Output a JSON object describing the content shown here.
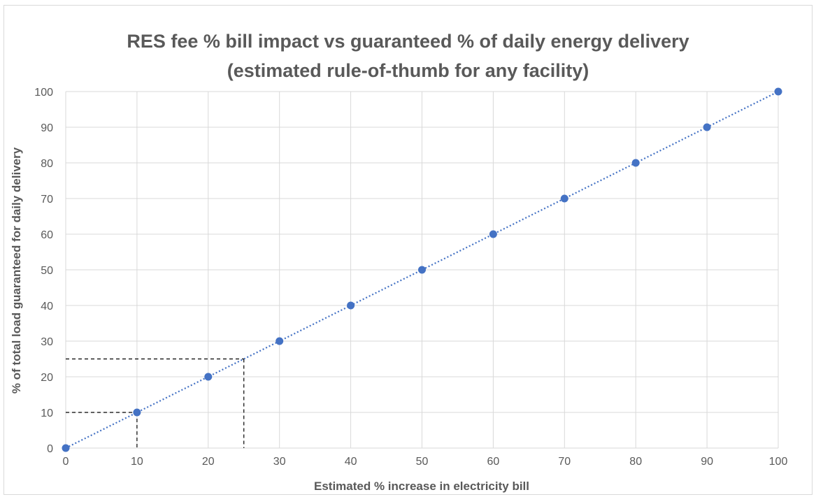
{
  "chart_data": {
    "type": "scatter",
    "title_line1": "RES fee % bill impact vs guaranteed % of daily energy delivery",
    "title_line2": "(estimated rule-of-thumb for any facility)",
    "xlabel": "Estimated % increase in electricity bill",
    "ylabel": "% of total load guaranteed for daily delivery",
    "xlim": [
      0,
      100
    ],
    "ylim": [
      0,
      100
    ],
    "x_ticks": [
      0,
      10,
      20,
      30,
      40,
      50,
      60,
      70,
      80,
      90,
      100
    ],
    "y_ticks": [
      0,
      10,
      20,
      30,
      40,
      50,
      60,
      70,
      80,
      90,
      100
    ],
    "grid": true,
    "legend": "none",
    "series": [
      {
        "x": [
          0,
          10,
          20,
          30,
          40,
          50,
          60,
          70,
          80,
          90,
          100
        ],
        "y": [
          0,
          10,
          20,
          30,
          40,
          50,
          60,
          70,
          80,
          90,
          100
        ],
        "marker_color": "#4472c4",
        "trendline": "linear",
        "trendline_style": "dotted"
      }
    ],
    "reference_lines": [
      {
        "x": 10,
        "y": 10,
        "style": "dashed",
        "color": "#000000"
      },
      {
        "x": 25,
        "y": 25,
        "style": "dashed",
        "color": "#000000"
      }
    ]
  }
}
